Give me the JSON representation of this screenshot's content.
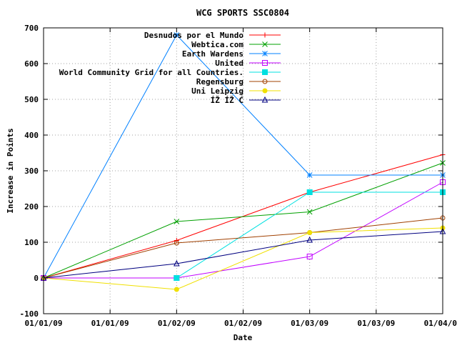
{
  "chart_data": {
    "type": "line",
    "title": "WCG SPORTS SSC0804",
    "xlabel": "Date",
    "ylabel": "Increase in Points",
    "ylim": [
      -100,
      700
    ],
    "yticks": [
      -100,
      0,
      100,
      200,
      300,
      400,
      500,
      600,
      700
    ],
    "x": [
      0,
      1,
      2,
      3
    ],
    "xticks": [
      {
        "pos": 0,
        "label": "01/01/09"
      },
      {
        "pos": 0.5,
        "label": "01/01/09"
      },
      {
        "pos": 1,
        "label": "01/02/09"
      },
      {
        "pos": 1.5,
        "label": "01/02/09"
      },
      {
        "pos": 2,
        "label": "01/03/09"
      },
      {
        "pos": 2.5,
        "label": "01/03/09"
      },
      {
        "pos": 3,
        "label": "01/04/0"
      }
    ],
    "grid": true,
    "legend": "top-right",
    "series": [
      {
        "name": "Desnudos por el Mundo",
        "color": "#ff0000",
        "marker": "plus",
        "values": [
          0,
          105,
          240,
          345
        ]
      },
      {
        "name": "Webtica.com",
        "color": "#00a000",
        "marker": "cross",
        "values": [
          0,
          158,
          185,
          322
        ]
      },
      {
        "name": "Earth Wardens",
        "color": "#0080ff",
        "marker": "star",
        "values": [
          0,
          680,
          288,
          288
        ]
      },
      {
        "name": "United",
        "color": "#c000ff",
        "marker": "square",
        "values": [
          0,
          0,
          60,
          268
        ]
      },
      {
        "name": "World Community Grid for all Countries.",
        "color": "#00e0e0",
        "marker": "filled-square",
        "values": [
          null,
          0,
          240,
          240
        ]
      },
      {
        "name": "Regensburg",
        "color": "#a04000",
        "marker": "circle",
        "values": [
          0,
          98,
          127,
          168
        ]
      },
      {
        "name": "Uni Leipzig",
        "color": "#f0e000",
        "marker": "filled-circle",
        "values": [
          0,
          -32,
          127,
          140
        ]
      },
      {
        "name": "ÍŽ ÍŽ Ć",
        "color": "#000080",
        "marker": "triangle",
        "values": [
          0,
          40,
          106,
          130
        ]
      }
    ]
  }
}
